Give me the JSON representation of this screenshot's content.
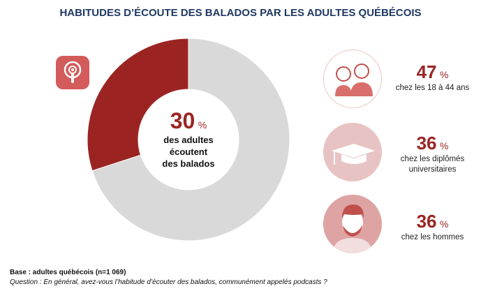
{
  "title": "HABITUDES D’ÉCOUTE DES BALADOS PAR LES ADULTES QUÉBÉCOIS",
  "chart_data": {
    "type": "pie",
    "variant": "donut",
    "values": [
      30,
      70
    ],
    "colors": [
      "#9b2423",
      "#d9d9d9"
    ],
    "center": {
      "value": "30",
      "unit": "%",
      "label": [
        "des adultes",
        "écoutent",
        "des balados"
      ]
    }
  },
  "stats": [
    {
      "value": "47",
      "unit": "%",
      "label": "chez les 18 à 44 ans",
      "icon": "couple-icon"
    },
    {
      "value": "36",
      "unit": "%",
      "label": "chez les diplômés universitaires",
      "icon": "graduation-cap-icon"
    },
    {
      "value": "36",
      "unit": "%",
      "label": "chez les hommes",
      "icon": "man-icon"
    }
  ],
  "footer": {
    "base": "Base : adultes québécois (n=1 069)",
    "question": "Question : En général, avez-vous l’habitude d’écouter des balados, communément appelés podcasts ?"
  }
}
